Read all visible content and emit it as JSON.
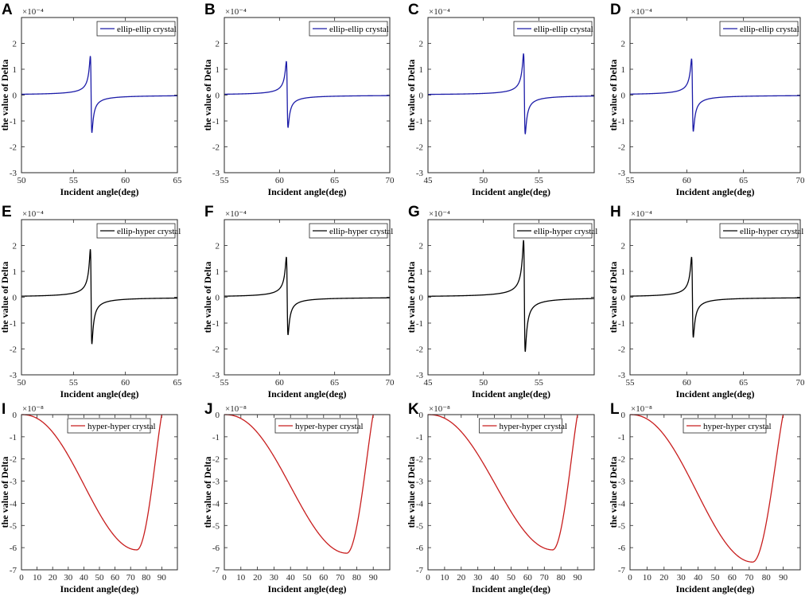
{
  "colors": {
    "ellip_ellip": "#1c1ca8",
    "ellip_hyper": "#000000",
    "hyper_hyper": "#c81e1e",
    "axis": "#262626"
  },
  "chart_data": [
    {
      "panel": "A",
      "type": "line",
      "xlabel": "Incident angle(deg)",
      "ylabel": "the value of Delta",
      "exponent": "×10⁻⁴",
      "xlim": [
        50,
        65
      ],
      "ylim": [
        -3,
        3
      ],
      "xticks": [
        50,
        55,
        60,
        65
      ],
      "yticks": [
        -3,
        -2,
        -1,
        0,
        1,
        2
      ],
      "legend": "ellip-ellip crystal",
      "legend_position": "top-right",
      "series": [
        {
          "name": "ellip-ellip crystal",
          "kind": "resonance",
          "x0": 56.7,
          "peak": 1.5,
          "trough": -1.45,
          "color_key": "ellip_ellip"
        }
      ]
    },
    {
      "panel": "B",
      "type": "line",
      "xlabel": "Incident angle(deg)",
      "ylabel": "the value of Delta",
      "exponent": "×10⁻⁴",
      "xlim": [
        55,
        70
      ],
      "ylim": [
        -3,
        3
      ],
      "xticks": [
        55,
        60,
        65,
        70
      ],
      "yticks": [
        -3,
        -2,
        -1,
        0,
        1,
        2
      ],
      "legend": "ellip-ellip crystal",
      "legend_position": "top-right",
      "series": [
        {
          "name": "ellip-ellip crystal",
          "kind": "resonance",
          "x0": 60.7,
          "peak": 1.3,
          "trough": -1.25,
          "color_key": "ellip_ellip"
        }
      ]
    },
    {
      "panel": "C",
      "type": "line",
      "xlabel": "Incident angle(deg)",
      "ylabel": "the value of Delta",
      "exponent": "×10⁻⁴",
      "xlim": [
        45,
        60
      ],
      "ylim": [
        -3,
        3
      ],
      "xticks": [
        45,
        50,
        55
      ],
      "yticks": [
        -3,
        -2,
        -1,
        0,
        1,
        2
      ],
      "legend": "ellip-ellip crystal",
      "legend_position": "top-right",
      "series": [
        {
          "name": "ellip-ellip crystal",
          "kind": "resonance",
          "x0": 53.7,
          "peak": 1.6,
          "trough": -1.5,
          "color_key": "ellip_ellip"
        }
      ]
    },
    {
      "panel": "D",
      "type": "line",
      "xlabel": "Incident angle(deg)",
      "ylabel": "the value of Delta",
      "exponent": "×10⁻⁴",
      "xlim": [
        55,
        70
      ],
      "ylim": [
        -3,
        3
      ],
      "xticks": [
        55,
        60,
        65,
        70
      ],
      "yticks": [
        -3,
        -2,
        -1,
        0,
        1,
        2
      ],
      "legend": "ellip-ellip crystal",
      "legend_position": "top-right",
      "series": [
        {
          "name": "ellip-ellip crystal",
          "kind": "resonance",
          "x0": 60.5,
          "peak": 1.4,
          "trough": -1.4,
          "color_key": "ellip_ellip"
        }
      ]
    },
    {
      "panel": "E",
      "type": "line",
      "xlabel": "Incident angle(deg)",
      "ylabel": "the value of Delta",
      "exponent": "×10⁻⁴",
      "xlim": [
        50,
        65
      ],
      "ylim": [
        -3,
        3
      ],
      "xticks": [
        50,
        55,
        60,
        65
      ],
      "yticks": [
        -3,
        -2,
        -1,
        0,
        1,
        2
      ],
      "legend": "ellip-hyper crystal",
      "legend_position": "top-right",
      "series": [
        {
          "name": "ellip-hyper crystal",
          "kind": "resonance",
          "x0": 56.7,
          "peak": 1.85,
          "trough": -1.8,
          "color_key": "ellip_hyper"
        }
      ]
    },
    {
      "panel": "F",
      "type": "line",
      "xlabel": "Incident angle(deg)",
      "ylabel": "the value of Delta",
      "exponent": "×10⁻⁴",
      "xlim": [
        55,
        70
      ],
      "ylim": [
        -3,
        3
      ],
      "xticks": [
        55,
        60,
        65,
        70
      ],
      "yticks": [
        -3,
        -2,
        -1,
        0,
        1,
        2
      ],
      "legend": "ellip-hyper crystal",
      "legend_position": "top-right",
      "series": [
        {
          "name": "ellip-hyper crystal",
          "kind": "resonance",
          "x0": 60.7,
          "peak": 1.55,
          "trough": -1.45,
          "color_key": "ellip_hyper"
        }
      ]
    },
    {
      "panel": "G",
      "type": "line",
      "xlabel": "Incident angle(deg)",
      "ylabel": "the value of Delta",
      "exponent": "×10⁻⁴",
      "xlim": [
        45,
        60
      ],
      "ylim": [
        -3,
        3
      ],
      "xticks": [
        45,
        50,
        55
      ],
      "yticks": [
        -3,
        -2,
        -1,
        0,
        1,
        2
      ],
      "legend": "ellip-hyper crystal",
      "legend_position": "top-right",
      "series": [
        {
          "name": "ellip-hyper crystal",
          "kind": "resonance",
          "x0": 53.7,
          "peak": 2.2,
          "trough": -2.1,
          "color_key": "ellip_hyper"
        }
      ]
    },
    {
      "panel": "H",
      "type": "line",
      "xlabel": "Incident angle(deg)",
      "ylabel": "the value of Delta",
      "exponent": "×10⁻⁴",
      "xlim": [
        55,
        70
      ],
      "ylim": [
        -3,
        3
      ],
      "xticks": [
        55,
        60,
        65,
        70
      ],
      "yticks": [
        -3,
        -2,
        -1,
        0,
        1,
        2
      ],
      "legend": "ellip-hyper crystal",
      "legend_position": "top-right",
      "series": [
        {
          "name": "ellip-hyper crystal",
          "kind": "resonance",
          "x0": 60.5,
          "peak": 1.55,
          "trough": -1.55,
          "color_key": "ellip_hyper"
        }
      ]
    },
    {
      "panel": "I",
      "type": "line",
      "xlabel": "Incident angle(deg)",
      "ylabel": "the value of Delta",
      "exponent": "×10⁻⁸",
      "xlim": [
        0,
        100
      ],
      "ylim": [
        -7,
        0
      ],
      "xticks": [
        0,
        10,
        20,
        30,
        40,
        50,
        60,
        70,
        80,
        90
      ],
      "yticks": [
        -7,
        -6,
        -5,
        -4,
        -3,
        -2,
        -1,
        0
      ],
      "legend": "hyper-hyper crystal",
      "legend_position": "top-center",
      "series": [
        {
          "name": "hyper-hyper crystal",
          "kind": "dip",
          "min_x": 74,
          "min_y": -6.1,
          "zero_x": 90,
          "color_key": "hyper_hyper"
        }
      ]
    },
    {
      "panel": "J",
      "type": "line",
      "xlabel": "Incident angle(deg)",
      "ylabel": "the value of Delta",
      "exponent": "×10⁻⁸",
      "xlim": [
        0,
        100
      ],
      "ylim": [
        -7,
        0
      ],
      "xticks": [
        0,
        10,
        20,
        30,
        40,
        50,
        60,
        70,
        80,
        90
      ],
      "yticks": [
        -7,
        -6,
        -5,
        -4,
        -3,
        -2,
        -1,
        0
      ],
      "legend": "hyper-hyper crystal",
      "legend_position": "top-center",
      "series": [
        {
          "name": "hyper-hyper crystal",
          "kind": "dip",
          "min_x": 74,
          "min_y": -6.25,
          "zero_x": 90,
          "color_key": "hyper_hyper"
        }
      ]
    },
    {
      "panel": "K",
      "type": "line",
      "xlabel": "Incident angle(deg)",
      "ylabel": "the value of Delta",
      "exponent": "×10⁻⁸",
      "xlim": [
        0,
        100
      ],
      "ylim": [
        -7,
        0
      ],
      "xticks": [
        0,
        10,
        20,
        30,
        40,
        50,
        60,
        70,
        80,
        90
      ],
      "yticks": [
        -7,
        -6,
        -5,
        -4,
        -3,
        -2,
        -1,
        0
      ],
      "legend": "hyper-hyper crystal",
      "legend_position": "top-center",
      "series": [
        {
          "name": "hyper-hyper crystal",
          "kind": "dip",
          "min_x": 75,
          "min_y": -6.1,
          "zero_x": 90,
          "color_key": "hyper_hyper"
        }
      ]
    },
    {
      "panel": "L",
      "type": "line",
      "xlabel": "Incident angle(deg)",
      "ylabel": "the value of Delta",
      "exponent": "×10⁻⁸",
      "xlim": [
        0,
        100
      ],
      "ylim": [
        -7,
        0
      ],
      "xticks": [
        0,
        10,
        20,
        30,
        40,
        50,
        60,
        70,
        80,
        90
      ],
      "yticks": [
        -7,
        -6,
        -5,
        -4,
        -3,
        -2,
        -1,
        0
      ],
      "legend": "hyper-hyper crystal",
      "legend_position": "top-center",
      "series": [
        {
          "name": "hyper-hyper crystal",
          "kind": "dip",
          "min_x": 72,
          "min_y": -6.65,
          "zero_x": 90,
          "color_key": "hyper_hyper"
        }
      ]
    }
  ]
}
